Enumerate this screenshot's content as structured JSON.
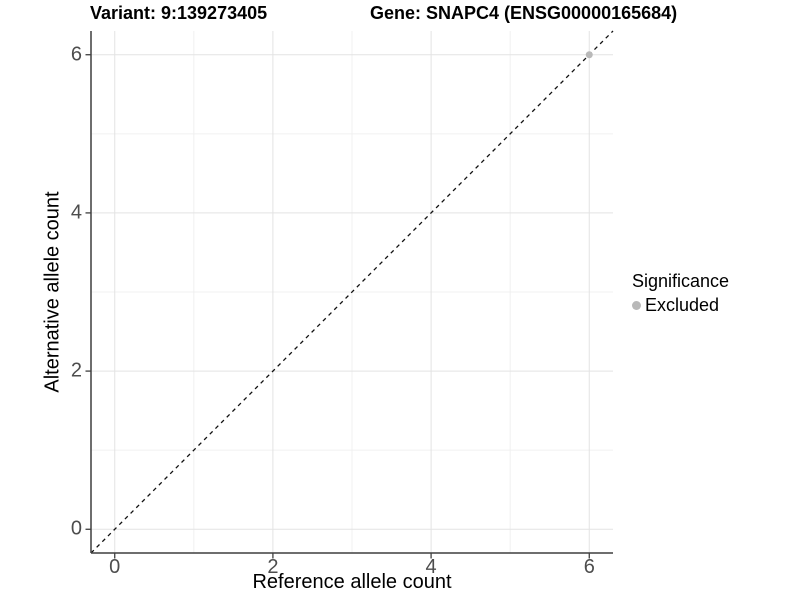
{
  "header": {
    "title_left": "Variant: 9:139273405",
    "title_right": "Gene: SNAPC4 (ENSG00000165684)"
  },
  "chart_data": {
    "type": "scatter",
    "title": "Variant: 9:139273405    Gene: SNAPC4 (ENSG00000165684)",
    "xlabel": "Reference allele count",
    "ylabel": "Alternative allele count",
    "xlim": [
      -0.3,
      6.3
    ],
    "ylim": [
      -0.3,
      6.3
    ],
    "x_ticks": [
      0,
      2,
      4,
      6
    ],
    "y_ticks": [
      0,
      2,
      4,
      6
    ],
    "x_minor_ticks": [
      1,
      3,
      5
    ],
    "y_minor_ticks": [
      1,
      3,
      5
    ],
    "grid": true,
    "legend_position": "right",
    "series": [
      {
        "name": "Excluded",
        "color": "#b9b9b9",
        "points": [
          {
            "x": 6,
            "y": 6
          }
        ]
      }
    ],
    "reference_line": {
      "type": "identity",
      "style": "dashed",
      "from": [
        -0.3,
        -0.3
      ],
      "to": [
        6.3,
        6.3
      ]
    }
  },
  "legend": {
    "title": "Significance",
    "items": [
      {
        "label": "Excluded",
        "color": "#b9b9b9"
      }
    ]
  },
  "colors": {
    "background": "#ffffff",
    "grid_major": "#e3e3e3",
    "grid_minor": "#f0f0f0",
    "axis_line": "#3f3f3f",
    "tick_mark": "#3f3f3f",
    "tick_label": "#4d4d4d",
    "identity_line": "#111111",
    "point": "#b9b9b9"
  }
}
